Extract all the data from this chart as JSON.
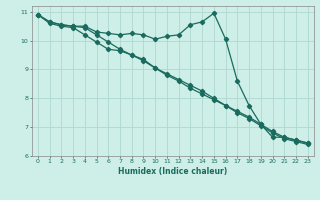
{
  "xlabel": "Humidex (Indice chaleur)",
  "xlim": [
    -0.5,
    23.5
  ],
  "ylim": [
    6,
    11.2
  ],
  "yticks": [
    6,
    7,
    8,
    9,
    10,
    11
  ],
  "xticks": [
    0,
    1,
    2,
    3,
    4,
    5,
    6,
    7,
    8,
    9,
    10,
    11,
    12,
    13,
    14,
    15,
    16,
    17,
    18,
    19,
    20,
    21,
    22,
    23
  ],
  "bg_color": "#ceeee8",
  "grid_color": "#b0d8d0",
  "line_color": "#1a6b5e",
  "series1_x": [
    0,
    1,
    2,
    3,
    4,
    5,
    6,
    7,
    8,
    9,
    10,
    11,
    12,
    13,
    14,
    15,
    16,
    17,
    18,
    19,
    20,
    21,
    22,
    23
  ],
  "series1_y": [
    10.9,
    10.65,
    10.55,
    10.5,
    10.5,
    10.3,
    10.25,
    10.2,
    10.25,
    10.2,
    10.05,
    10.15,
    10.2,
    10.55,
    10.65,
    10.95,
    10.05,
    8.6,
    7.75,
    7.1,
    6.65,
    6.65,
    6.55,
    6.45
  ],
  "series2_x": [
    0,
    1,
    2,
    3,
    4,
    5,
    6,
    7,
    8,
    9,
    10,
    11,
    12,
    13,
    14,
    15,
    16,
    17,
    18,
    19,
    20,
    21,
    22,
    23
  ],
  "series2_y": [
    10.9,
    10.6,
    10.5,
    10.45,
    10.2,
    9.95,
    9.7,
    9.65,
    9.5,
    9.35,
    9.05,
    8.85,
    8.65,
    8.45,
    8.25,
    8.0,
    7.75,
    7.55,
    7.35,
    7.1,
    6.85,
    6.65,
    6.55,
    6.45
  ],
  "series3_x": [
    0,
    1,
    2,
    3,
    4,
    5,
    6,
    7,
    8,
    9,
    10,
    11,
    12,
    13,
    14,
    15,
    16,
    17,
    18,
    19,
    20,
    21,
    22,
    23
  ],
  "series3_y": [
    10.9,
    10.65,
    10.55,
    10.5,
    10.45,
    10.2,
    9.95,
    9.7,
    9.5,
    9.3,
    9.05,
    8.8,
    8.6,
    8.35,
    8.15,
    7.95,
    7.75,
    7.5,
    7.3,
    7.05,
    6.8,
    6.6,
    6.5,
    6.4
  ]
}
